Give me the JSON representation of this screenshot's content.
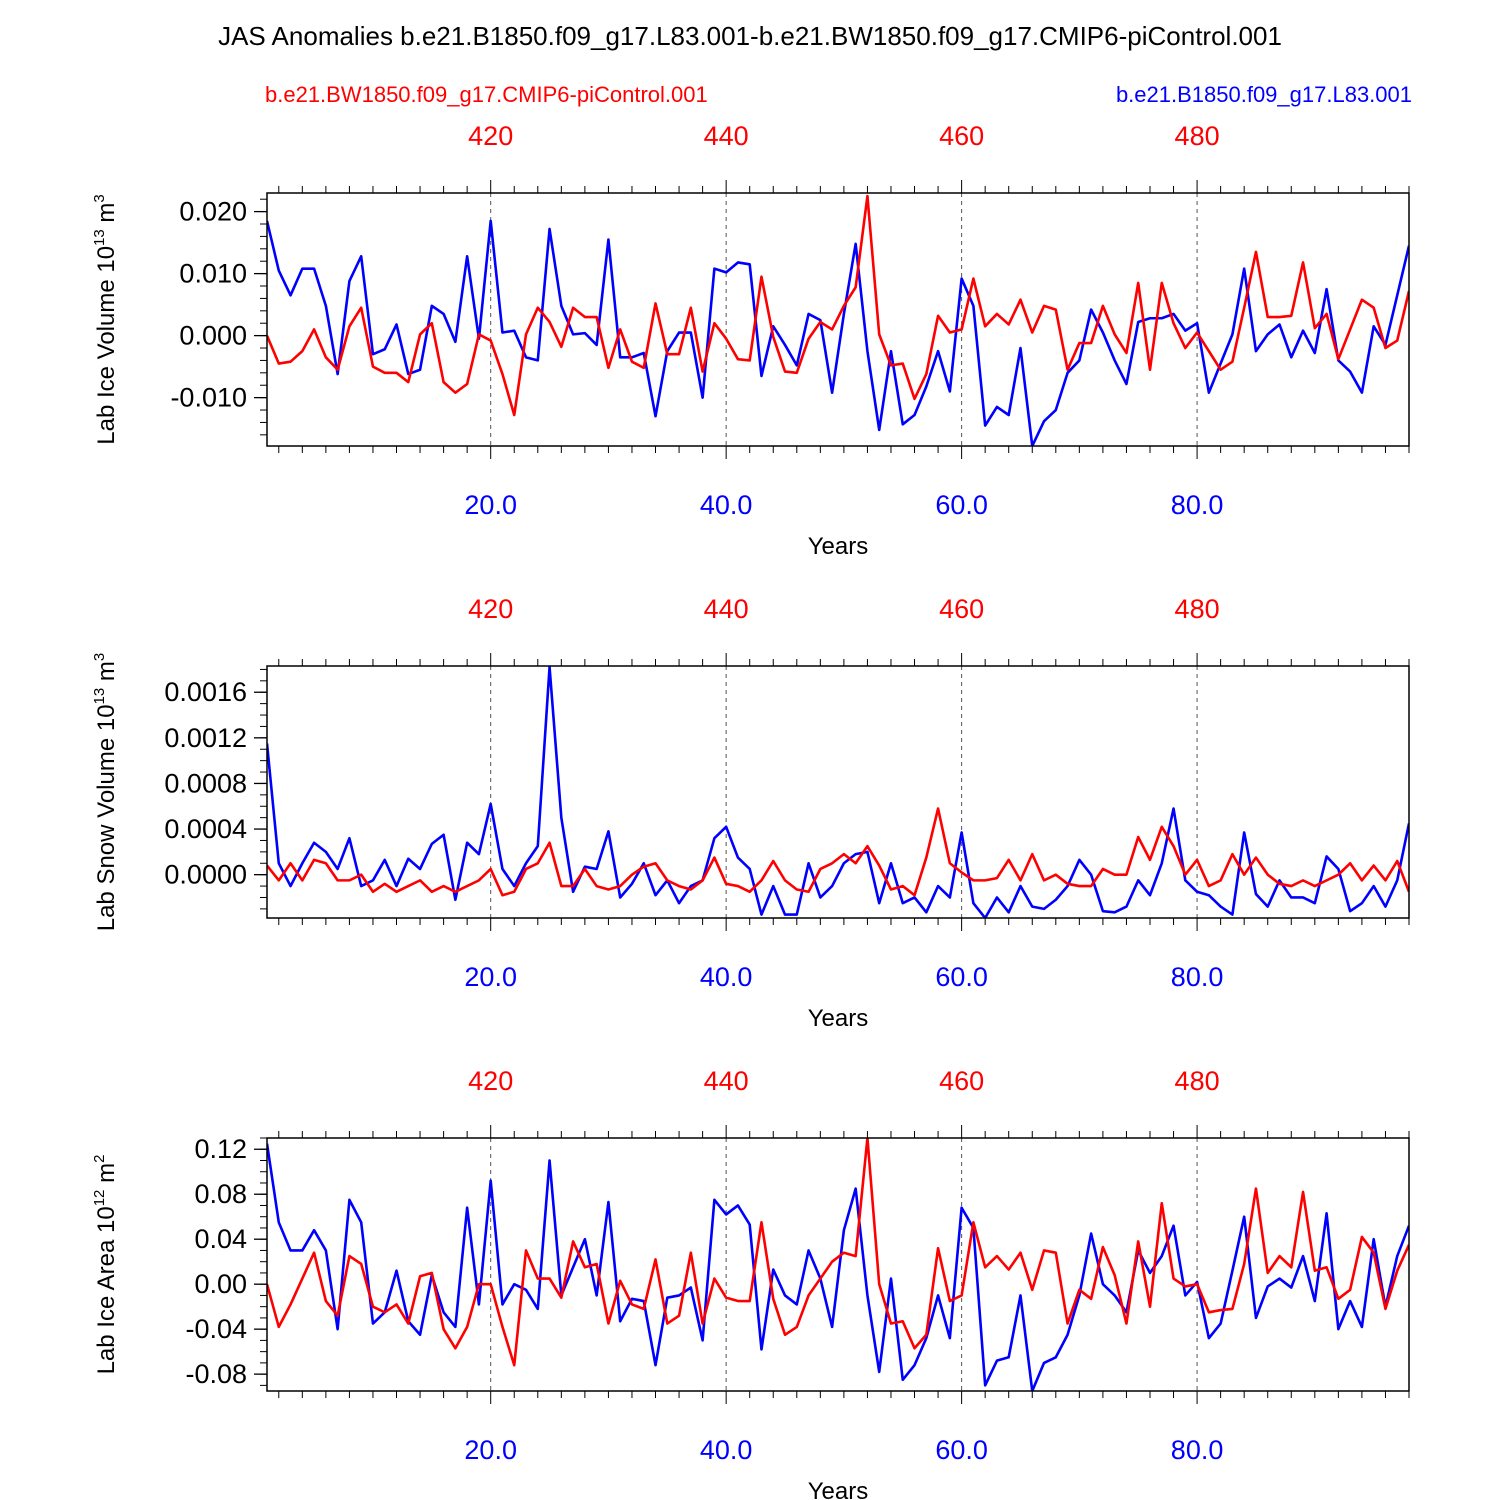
{
  "title": "JAS Anomalies b.e21.B1850.f09_g17.L83.001-b.e21.BW1850.f09_g17.CMIP6-piControl.001",
  "legend": {
    "red": "b.e21.BW1850.f09_g17.CMIP6-piControl.001",
    "blue": "b.e21.B1850.f09_g17.L83.001"
  },
  "colors": {
    "series_a": "#0000ff",
    "series_b": "#ff0000",
    "axis": "#000000",
    "grid": "#555555"
  },
  "chart_data": [
    {
      "type": "line",
      "title": "",
      "xlabel": "Years",
      "ylabel": "Lab Ice Volume 10",
      "ylabel_exp": "13",
      "ylabel_unit": " m",
      "ylabel_unit_exp": "3",
      "xlim": [
        1,
        98
      ],
      "ylim": [
        -0.0178,
        0.023
      ],
      "yticks": [
        -0.01,
        0.0,
        0.01,
        0.02
      ],
      "yticklabels": [
        "-0.010",
        "0.000",
        "0.010",
        "0.020"
      ],
      "yminor_step": 0.002,
      "bottom_ticks": [
        20,
        40,
        60,
        80
      ],
      "bottom_ticklabels": [
        "20.0",
        "40.0",
        "60.0",
        "80.0"
      ],
      "top_ticks": [
        20,
        40,
        60,
        80
      ],
      "top_ticklabels": [
        "420",
        "440",
        "460",
        "480"
      ],
      "series": [
        {
          "name": "b.e21.B1850.f09_g17.L83.001",
          "color": "blue",
          "values": [
            0.0185,
            0.0105,
            0.0065,
            0.0108,
            0.0108,
            0.0048,
            -0.0062,
            0.0088,
            0.0128,
            -0.003,
            -0.0022,
            0.0018,
            -0.0062,
            -0.0055,
            0.0048,
            0.0035,
            -0.001,
            0.0128,
            -0.0005,
            0.0185,
            0.0005,
            0.0008,
            -0.0035,
            -0.004,
            0.0172,
            0.0048,
            0.0002,
            0.0004,
            -0.0015,
            0.0155,
            -0.0035,
            -0.0035,
            -0.0028,
            -0.013,
            -0.0025,
            0.0005,
            0.0005,
            -0.01,
            0.0108,
            0.0102,
            0.0118,
            0.0115,
            -0.0065,
            0.0015,
            -0.0015,
            -0.0048,
            0.0035,
            0.0025,
            -0.0092,
            0.0035,
            0.0148,
            -0.0025,
            -0.0152,
            -0.0025,
            -0.0143,
            -0.0128,
            -0.0082,
            -0.0025,
            -0.009,
            0.0092,
            0.0048,
            -0.0145,
            -0.0115,
            -0.0128,
            -0.002,
            -0.0178,
            -0.0138,
            -0.012,
            -0.006,
            -0.004,
            0.0042,
            0.0005,
            -0.004,
            -0.0078,
            0.0022,
            0.0028,
            0.0028,
            0.0035,
            0.0008,
            0.002,
            -0.0092,
            -0.0045,
            0.0002,
            0.0108,
            -0.0025,
            0.0002,
            0.0018,
            -0.0035,
            0.0008,
            -0.0028,
            0.0075,
            -0.004,
            -0.0058,
            -0.0092,
            0.0015,
            -0.0015,
            0.0065,
            0.0145
          ]
        },
        {
          "name": "b.e21.BW1850.f09_g17.CMIP6-piControl.001",
          "color": "red",
          "values": [
            0.0,
            -0.0045,
            -0.0042,
            -0.0025,
            0.001,
            -0.0035,
            -0.0055,
            0.0015,
            0.0045,
            -0.005,
            -0.006,
            -0.006,
            -0.0075,
            0.0002,
            0.002,
            -0.0075,
            -0.0092,
            -0.0078,
            0.0002,
            -0.0008,
            -0.0062,
            -0.0128,
            0.0002,
            0.0045,
            0.0022,
            -0.0018,
            0.0045,
            0.003,
            0.003,
            -0.0052,
            0.001,
            -0.0042,
            -0.0052,
            0.0052,
            -0.003,
            -0.003,
            0.0045,
            -0.0058,
            0.002,
            -0.0005,
            -0.0038,
            -0.004,
            0.0095,
            -0.0002,
            -0.0058,
            -0.006,
            -0.0005,
            0.0022,
            0.001,
            0.0048,
            0.0078,
            0.0225,
            0.0002,
            -0.0048,
            -0.0045,
            -0.0102,
            -0.0062,
            0.0032,
            0.0005,
            0.001,
            0.0092,
            0.0015,
            0.0035,
            0.0018,
            0.0058,
            0.0005,
            0.0048,
            0.0042,
            -0.0055,
            -0.0012,
            -0.0012,
            0.0048,
            0.0002,
            -0.0028,
            0.0085,
            -0.0055,
            0.0085,
            0.002,
            -0.002,
            0.0005,
            -0.0025,
            -0.0055,
            -0.0042,
            0.0045,
            0.0135,
            0.003,
            0.003,
            0.0032,
            0.0118,
            0.0012,
            0.0035,
            -0.0038,
            0.001,
            0.0058,
            0.0045,
            -0.002,
            -0.0008,
            0.0072
          ]
        }
      ]
    },
    {
      "type": "line",
      "title": "",
      "xlabel": "Years",
      "ylabel": "Lab Snow Volume 10",
      "ylabel_exp": "13",
      "ylabel_unit": " m",
      "ylabel_unit_exp": "3",
      "xlim": [
        1,
        98
      ],
      "ylim": [
        -0.00038,
        0.00183
      ],
      "yticks": [
        0.0,
        0.0004,
        0.0008,
        0.0012,
        0.0016
      ],
      "yticklabels": [
        "0.0000",
        "0.0004",
        "0.0008",
        "0.0012",
        "0.0016"
      ],
      "yminor_step": 0.0001,
      "bottom_ticks": [
        20,
        40,
        60,
        80
      ],
      "bottom_ticklabels": [
        "20.0",
        "40.0",
        "60.0",
        "80.0"
      ],
      "top_ticks": [
        20,
        40,
        60,
        80
      ],
      "top_ticklabels": [
        "420",
        "440",
        "460",
        "480"
      ],
      "series": [
        {
          "name": "b.e21.B1850.f09_g17.L83.001",
          "color": "blue",
          "values": [
            0.00115,
            0.0001,
            -0.0001,
            0.0001,
            0.00028,
            0.0002,
            5e-05,
            0.00032,
            -0.0001,
            -5e-05,
            0.00013,
            -0.0001,
            0.00014,
            5e-05,
            0.00027,
            0.00035,
            -0.00022,
            0.00028,
            0.00018,
            0.00062,
            5e-05,
            -0.0001,
            0.0001,
            0.00025,
            0.00182,
            0.0005,
            -0.00015,
            7e-05,
            5e-05,
            0.00038,
            -0.0002,
            -8e-05,
            0.0001,
            -0.00018,
            -5e-05,
            -0.00025,
            -0.0001,
            -5e-05,
            0.00032,
            0.00042,
            0.00015,
            5e-05,
            -0.00035,
            -0.0001,
            -0.00035,
            -0.00035,
            0.0001,
            -0.0002,
            -0.0001,
            0.0001,
            0.00018,
            0.0002,
            -0.00025,
            0.0001,
            -0.00025,
            -0.0002,
            -0.00033,
            -0.0001,
            -0.0002,
            0.00037,
            -0.00025,
            -0.00038,
            -0.0002,
            -0.00033,
            -0.0001,
            -0.00028,
            -0.0003,
            -0.00022,
            -0.0001,
            0.00013,
            0.0,
            -0.00032,
            -0.00033,
            -0.00028,
            -5e-05,
            -0.00018,
            0.0001,
            0.00058,
            -5e-05,
            -0.00015,
            -0.00018,
            -0.00028,
            -0.00035,
            0.00037,
            -0.00017,
            -0.00028,
            -5e-05,
            -0.0002,
            -0.0002,
            -0.00025,
            0.00016,
            5e-05,
            -0.00032,
            -0.00025,
            -0.0001,
            -0.00028,
            -5e-05,
            0.00045
          ]
        },
        {
          "name": "b.e21.BW1850.f09_g17.CMIP6-piControl.001",
          "color": "red",
          "values": [
            8e-05,
            -5e-05,
            0.0001,
            -5e-05,
            0.00013,
            0.0001,
            -5e-05,
            -5e-05,
            0.0,
            -0.00015,
            -8e-05,
            -0.00015,
            -0.0001,
            -5e-05,
            -0.00015,
            -0.0001,
            -0.00015,
            -0.0001,
            -5e-05,
            5e-05,
            -0.00018,
            -0.00015,
            5e-05,
            0.0001,
            0.00028,
            -0.0001,
            -0.0001,
            5e-05,
            -0.0001,
            -0.00013,
            -0.0001,
            0.0,
            7e-05,
            0.0001,
            -5e-05,
            -0.0001,
            -0.00013,
            -5e-05,
            0.00015,
            -8e-05,
            -0.0001,
            -0.00015,
            -5e-05,
            0.00012,
            -5e-05,
            -0.00013,
            -0.00015,
            5e-05,
            0.0001,
            0.00018,
            0.0001,
            0.00025,
            8e-05,
            -0.00013,
            -0.0001,
            -0.00018,
            0.00015,
            0.00058,
            0.0001,
            2e-05,
            -5e-05,
            -5e-05,
            -3e-05,
            0.00013,
            -5e-05,
            0.00018,
            -5e-05,
            0.0,
            -8e-05,
            -0.0001,
            -0.0001,
            5e-05,
            0.0,
            0.0,
            0.00033,
            0.00013,
            0.00042,
            0.00025,
            0.0,
            0.00013,
            -0.0001,
            -5e-05,
            0.00018,
            0.0,
            0.00015,
            0.0,
            -8e-05,
            -0.0001,
            -5e-05,
            -0.0001,
            -5e-05,
            0.0,
            0.0001,
            -5e-05,
            8e-05,
            -5e-05,
            0.00012,
            -0.00015
          ]
        }
      ]
    },
    {
      "type": "line",
      "title": "",
      "xlabel": "Years",
      "ylabel": "Lab Ice Area 10",
      "ylabel_exp": "12",
      "ylabel_unit": " m",
      "ylabel_unit_exp": "2",
      "xlim": [
        1,
        98
      ],
      "ylim": [
        -0.095,
        0.13
      ],
      "yticks": [
        -0.08,
        -0.04,
        0.0,
        0.04,
        0.08,
        0.12
      ],
      "yticklabels": [
        "-0.08",
        "-0.04",
        "0.00",
        "0.04",
        "0.08",
        "0.12"
      ],
      "yminor_step": 0.01,
      "bottom_ticks": [
        20,
        40,
        60,
        80
      ],
      "bottom_ticklabels": [
        "20.0",
        "40.0",
        "60.0",
        "80.0"
      ],
      "top_ticks": [
        20,
        40,
        60,
        80
      ],
      "top_ticklabels": [
        "420",
        "440",
        "460",
        "480"
      ],
      "series": [
        {
          "name": "b.e21.B1850.f09_g17.L83.001",
          "color": "blue",
          "values": [
            0.125,
            0.055,
            0.03,
            0.03,
            0.048,
            0.03,
            -0.04,
            0.075,
            0.055,
            -0.035,
            -0.025,
            0.012,
            -0.033,
            -0.045,
            0.008,
            -0.025,
            -0.038,
            0.068,
            -0.018,
            0.092,
            -0.018,
            0.0,
            -0.005,
            -0.022,
            0.11,
            -0.01,
            0.015,
            0.04,
            -0.01,
            0.073,
            -0.033,
            -0.013,
            -0.015,
            -0.072,
            -0.012,
            -0.01,
            -0.003,
            -0.05,
            0.075,
            0.062,
            0.07,
            0.053,
            -0.058,
            0.013,
            -0.01,
            -0.018,
            0.03,
            0.005,
            -0.038,
            0.048,
            0.085,
            -0.01,
            -0.078,
            0.005,
            -0.085,
            -0.072,
            -0.048,
            -0.01,
            -0.048,
            0.068,
            0.05,
            -0.09,
            -0.068,
            -0.065,
            -0.01,
            -0.095,
            -0.07,
            -0.065,
            -0.045,
            -0.01,
            0.045,
            0.0,
            -0.01,
            -0.025,
            0.03,
            0.01,
            0.025,
            0.052,
            -0.01,
            0.002,
            -0.048,
            -0.035,
            0.012,
            0.06,
            -0.03,
            -0.002,
            0.005,
            -0.003,
            0.025,
            -0.015,
            0.063,
            -0.04,
            -0.015,
            -0.038,
            0.04,
            -0.02,
            0.025,
            0.052
          ]
        },
        {
          "name": "b.e21.BW1850.f09_g17.CMIP6-piControl.001",
          "color": "red",
          "values": [
            0.0,
            -0.038,
            -0.018,
            0.005,
            0.028,
            -0.015,
            -0.028,
            0.025,
            0.018,
            -0.02,
            -0.025,
            -0.018,
            -0.035,
            0.007,
            0.01,
            -0.04,
            -0.057,
            -0.038,
            0.0,
            0.0,
            -0.038,
            -0.072,
            0.03,
            0.005,
            0.005,
            -0.012,
            0.038,
            0.015,
            0.018,
            -0.035,
            0.003,
            -0.018,
            -0.022,
            0.022,
            -0.035,
            -0.028,
            0.028,
            -0.035,
            0.005,
            -0.012,
            -0.015,
            -0.015,
            0.055,
            -0.013,
            -0.045,
            -0.038,
            -0.01,
            0.005,
            0.02,
            0.028,
            0.025,
            0.13,
            0.0,
            -0.035,
            -0.033,
            -0.057,
            -0.045,
            0.032,
            -0.015,
            -0.01,
            0.055,
            0.015,
            0.025,
            0.013,
            0.028,
            -0.005,
            0.03,
            0.028,
            -0.035,
            -0.005,
            -0.013,
            0.033,
            0.008,
            -0.035,
            0.038,
            -0.02,
            0.072,
            0.005,
            -0.002,
            0.0,
            -0.025,
            -0.023,
            -0.022,
            0.018,
            0.085,
            0.01,
            0.025,
            0.015,
            0.082,
            0.012,
            0.015,
            -0.013,
            -0.005,
            0.042,
            0.028,
            -0.022,
            0.012,
            0.035
          ]
        }
      ]
    }
  ]
}
